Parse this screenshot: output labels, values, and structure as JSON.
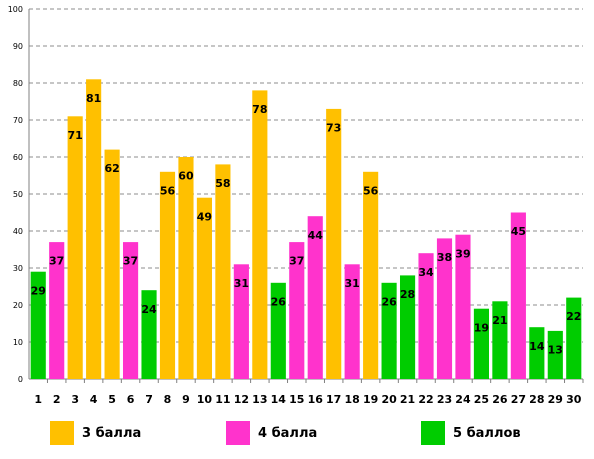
{
  "chart_data": {
    "type": "bar",
    "categories": [
      "1",
      "2",
      "3",
      "4",
      "5",
      "6",
      "7",
      "8",
      "9",
      "10",
      "11",
      "12",
      "13",
      "14",
      "15",
      "16",
      "17",
      "18",
      "19",
      "20",
      "21",
      "22",
      "23",
      "24",
      "25",
      "26",
      "27",
      "28",
      "29",
      "30"
    ],
    "values": [
      29,
      37,
      71,
      81,
      62,
      37,
      24,
      56,
      60,
      49,
      58,
      31,
      78,
      26,
      37,
      44,
      73,
      31,
      56,
      26,
      28,
      34,
      38,
      39,
      19,
      21,
      45,
      14,
      13,
      22
    ],
    "groups": [
      "5 баллов",
      "4 балла",
      "3 балла",
      "3 балла",
      "3 балла",
      "4 балла",
      "5 баллов",
      "3 балла",
      "3 балла",
      "3 балла",
      "3 балла",
      "4 балла",
      "3 балла",
      "5 баллов",
      "4 балла",
      "4 балла",
      "3 балла",
      "4 балла",
      "3 балла",
      "5 баллов",
      "5 баллов",
      "4 балла",
      "4 балла",
      "4 балла",
      "5 баллов",
      "5 баллов",
      "4 балла",
      "5 баллов",
      "5 баллов",
      "5 баллов"
    ],
    "yticks": [
      0,
      10,
      20,
      30,
      40,
      50,
      60,
      70,
      80,
      90,
      100
    ],
    "ylim": [
      0,
      100
    ],
    "grid": true,
    "legend": [
      {
        "label": "3 балла",
        "color": "#FFC000"
      },
      {
        "label": "4 балла",
        "color": "#FF33CC"
      },
      {
        "label": "5 баллов",
        "color": "#00CC00"
      }
    ]
  }
}
